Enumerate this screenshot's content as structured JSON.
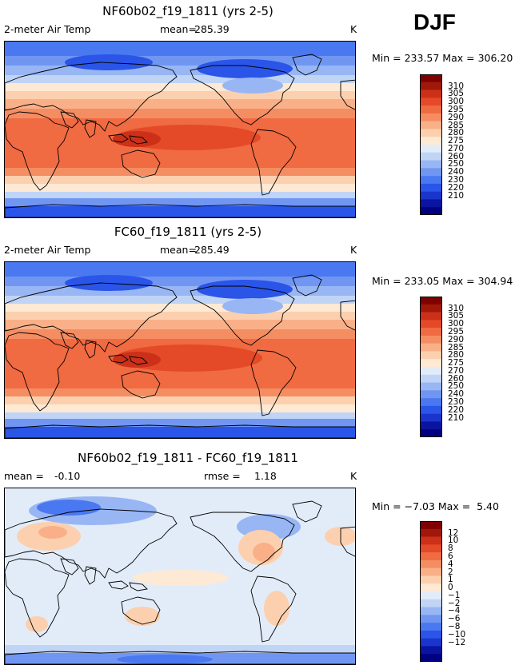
{
  "season": "DJF",
  "palette": {
    "temp": [
      "#000080",
      "#0a14a0",
      "#1a35cc",
      "#2a55e8",
      "#4a78f0",
      "#7096f2",
      "#98b6f4",
      "#c0d4f6",
      "#e2ecf8",
      "#fde9d4",
      "#fcd0ae",
      "#f9b088",
      "#f58d62",
      "#f06a42",
      "#e44a28",
      "#cc3018",
      "#a01808",
      "#800000"
    ],
    "diff": [
      "#000080",
      "#0a14a0",
      "#1a35cc",
      "#2a55e8",
      "#4a78f0",
      "#7096f2",
      "#98b6f4",
      "#c0d4f6",
      "#e2ecf8",
      "#fde9d4",
      "#fcd0ae",
      "#f9b088",
      "#f58d62",
      "#f06a42",
      "#e44a28",
      "#cc3018",
      "#a01808",
      "#800000"
    ]
  },
  "chart_data": [
    {
      "type": "heatmap",
      "title": "NF60b02_f19_1811 (yrs 2-5)",
      "variable": "2-meter Air Temp",
      "mean_label": "mean=",
      "mean": "285.39",
      "units": "K",
      "min_max": "Min = 233.57 Max = 306.20",
      "min": 233.57,
      "max": 306.2,
      "colorbar_levels": [
        "310",
        "305",
        "300",
        "295",
        "290",
        "285",
        "280",
        "275",
        "270",
        "260",
        "250",
        "240",
        "230",
        "220",
        "210"
      ]
    },
    {
      "type": "heatmap",
      "title": "FC60_f19_1811 (yrs 2-5)",
      "variable": "2-meter Air Temp",
      "mean_label": "mean=",
      "mean": "285.49",
      "units": "K",
      "min_max": "Min = 233.05 Max = 304.94",
      "min": 233.05,
      "max": 304.94,
      "colorbar_levels": [
        "310",
        "305",
        "300",
        "295",
        "290",
        "285",
        "280",
        "275",
        "270",
        "260",
        "250",
        "240",
        "230",
        "220",
        "210"
      ]
    },
    {
      "type": "heatmap",
      "title": "NF60b02_f19_1811 - FC60_f19_1811",
      "mean_label": "mean =",
      "mean": "-0.10",
      "rmse_label": "rmse =",
      "rmse": "1.18",
      "units": "K",
      "min_max": "Min = −7.03 Max =  5.40",
      "min": -7.03,
      "max": 5.4,
      "colorbar_levels": [
        "12",
        "10",
        "8",
        "6",
        "4",
        "2",
        "1",
        "0",
        "−1",
        "−2",
        "−4",
        "−6",
        "−8",
        "−10",
        "−12"
      ]
    }
  ]
}
